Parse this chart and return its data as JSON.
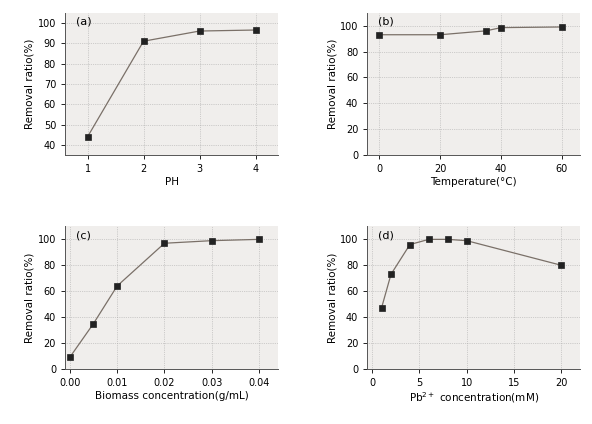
{
  "a": {
    "x": [
      1,
      2,
      3,
      4
    ],
    "y": [
      44,
      91,
      96,
      96.5
    ],
    "xlabel": "PH",
    "ylabel": "Removal ratio(%)",
    "label": "(a)",
    "xlim": [
      0.6,
      4.4
    ],
    "ylim": [
      35,
      105
    ],
    "yticks": [
      40,
      50,
      60,
      70,
      80,
      90,
      100
    ],
    "xticks": [
      1,
      2,
      3,
      4
    ]
  },
  "b": {
    "x": [
      0,
      20,
      35,
      40,
      60
    ],
    "y": [
      93,
      93,
      96,
      98.5,
      99
    ],
    "xlabel": "Temperature(°C)",
    "ylabel": "Removal ratio(%)",
    "label": "(b)",
    "xlim": [
      -4,
      66
    ],
    "ylim": [
      0,
      110
    ],
    "yticks": [
      0,
      20,
      40,
      60,
      80,
      100
    ],
    "xticks": [
      0,
      20,
      40,
      60
    ]
  },
  "c": {
    "x": [
      0.0,
      0.005,
      0.01,
      0.02,
      0.03,
      0.04
    ],
    "y": [
      9,
      35,
      64,
      97,
      99,
      100
    ],
    "xlabel": "Biomass concentration(g/mL)",
    "ylabel": "Removal ratio(%)",
    "label": "(c)",
    "xlim": [
      -0.001,
      0.044
    ],
    "ylim": [
      0,
      110
    ],
    "yticks": [
      0,
      20,
      40,
      60,
      80,
      100
    ],
    "xticks": [
      0.0,
      0.01,
      0.02,
      0.03,
      0.04
    ]
  },
  "d": {
    "x": [
      1,
      2,
      4,
      6,
      8,
      10,
      20
    ],
    "y": [
      47,
      73,
      96,
      100,
      100,
      99,
      80
    ],
    "xlabel": "Pb2+ concentration(mM)",
    "ylabel": "Removal ratio(%)",
    "label": "(d)",
    "xlim": [
      -0.5,
      22
    ],
    "ylim": [
      0,
      110
    ],
    "yticks": [
      0,
      20,
      40,
      60,
      80,
      100
    ],
    "xticks": [
      0,
      5,
      10,
      15,
      20
    ]
  },
  "line_color": "#7a7068",
  "marker": "s",
  "marker_size": 4,
  "marker_color": "#222222",
  "bg_color": "#f0eeec",
  "font_size": 8,
  "label_font_size": 7.5,
  "tick_font_size": 7
}
